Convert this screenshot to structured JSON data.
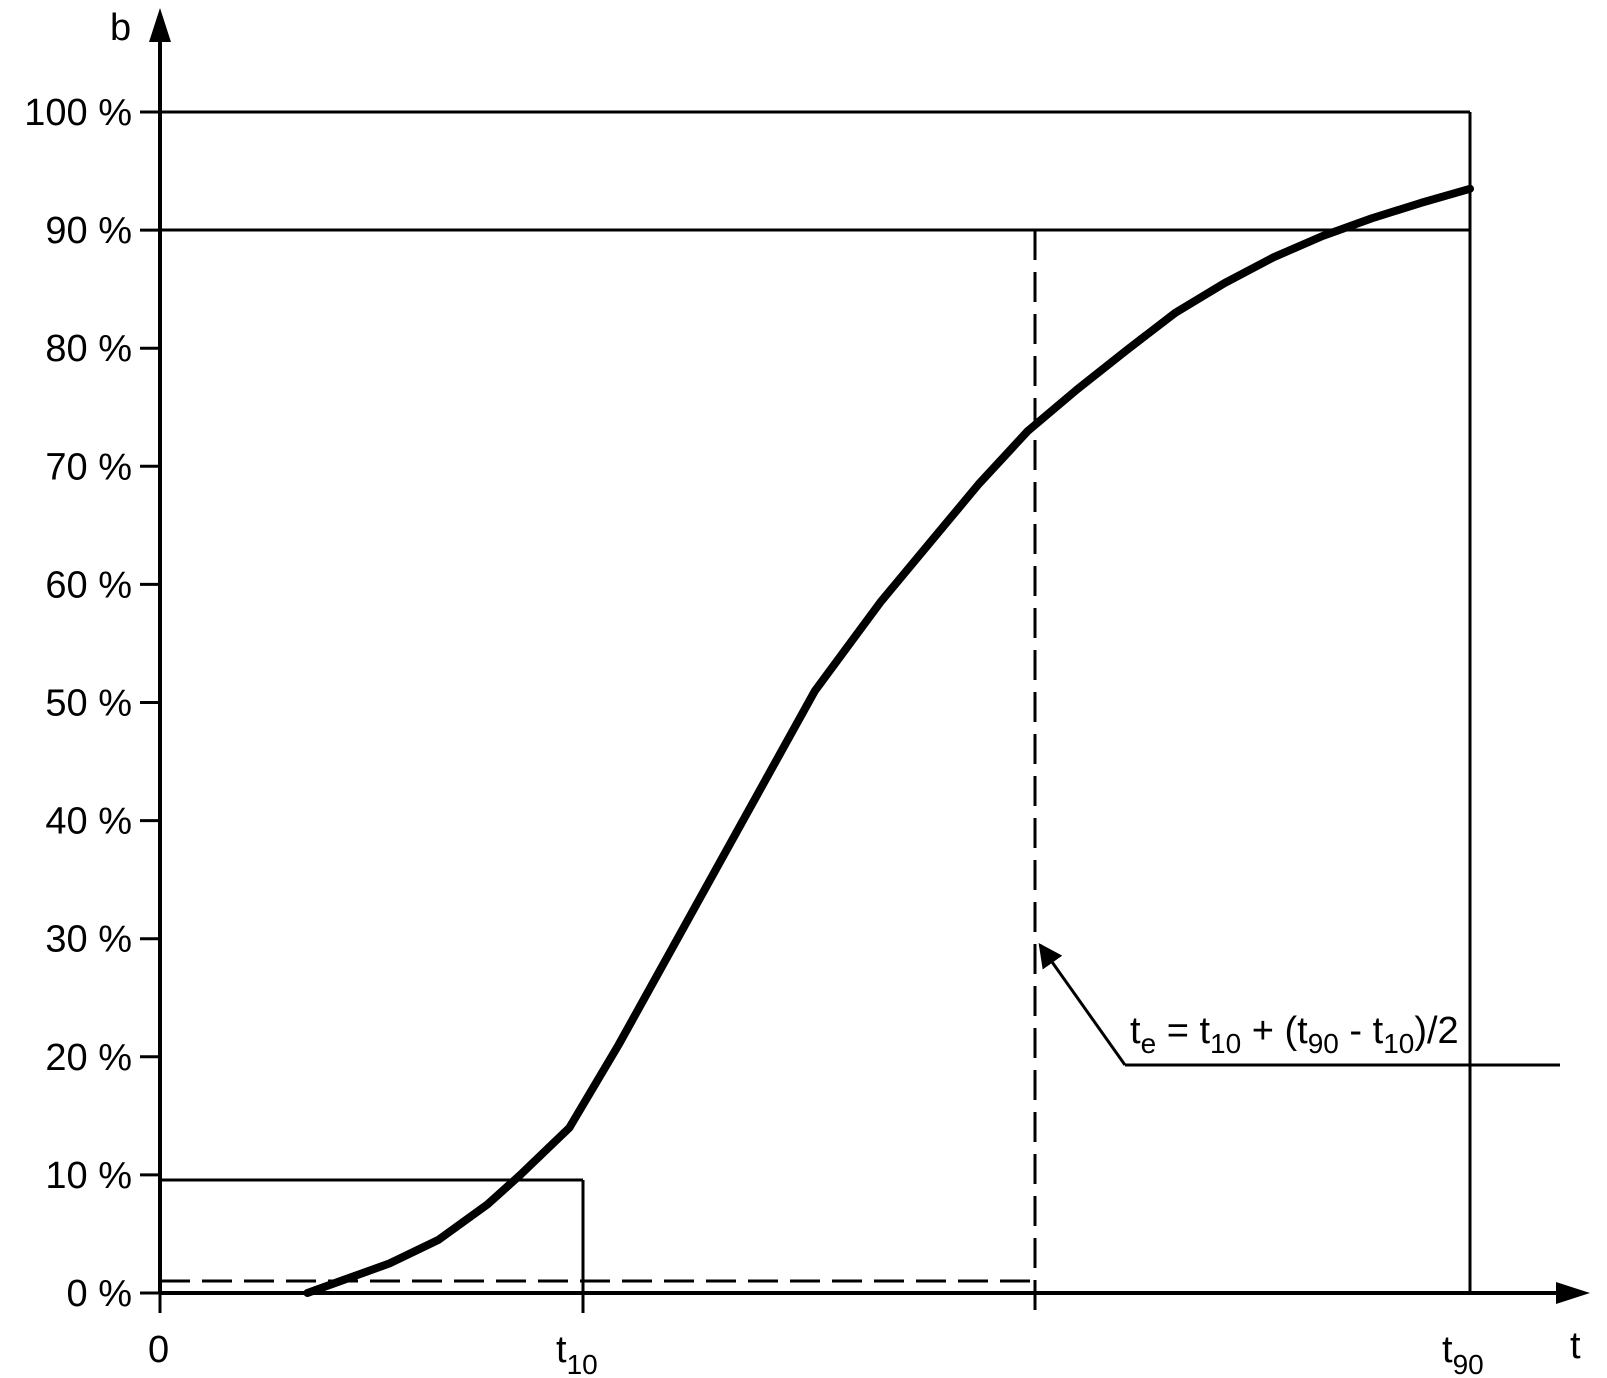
{
  "chart_data": {
    "type": "line",
    "title": "",
    "xlabel": "t",
    "ylabel": "b",
    "y_tick_labels": [
      "0 %",
      "10 %",
      "20 %",
      "30 %",
      "40 %",
      "50 %",
      "60 %",
      "70 %",
      "80 %",
      "90 %",
      "100 %"
    ],
    "y_tick_values": [
      0,
      10,
      20,
      30,
      40,
      50,
      60,
      70,
      80,
      90,
      100
    ],
    "x_tick_labels": [
      {
        "base": "0",
        "sub": ""
      },
      {
        "base": "t",
        "sub": "10"
      },
      {
        "base": "t",
        "sub": "90"
      }
    ],
    "ylim": [
      0,
      100
    ],
    "grid": false,
    "series": [
      {
        "x": [
          0.45,
          0.55,
          0.7,
          0.85,
          1.0,
          1.1,
          1.25,
          1.4,
          1.6,
          1.8,
          2.0,
          2.2,
          2.35,
          2.5,
          2.65,
          2.8,
          2.95,
          3.1,
          3.25,
          3.4,
          3.55,
          3.7,
          3.85,
          4.0
        ],
        "y": [
          0,
          1,
          2.5,
          4.5,
          7.5,
          10,
          14,
          21,
          31,
          41,
          51,
          58.5,
          63.5,
          68.5,
          73,
          76.5,
          79.8,
          83,
          85.5,
          87.7,
          89.5,
          91,
          92.3,
          93.5
        ]
      }
    ],
    "annotations": {
      "formula": {
        "t": "t",
        "e": "e",
        "eq": " = t",
        "s10a": "10",
        "plus": " + (t",
        "s90": "90",
        "minus": " - t",
        "s10b": "10",
        "tail": ")/2"
      }
    }
  }
}
